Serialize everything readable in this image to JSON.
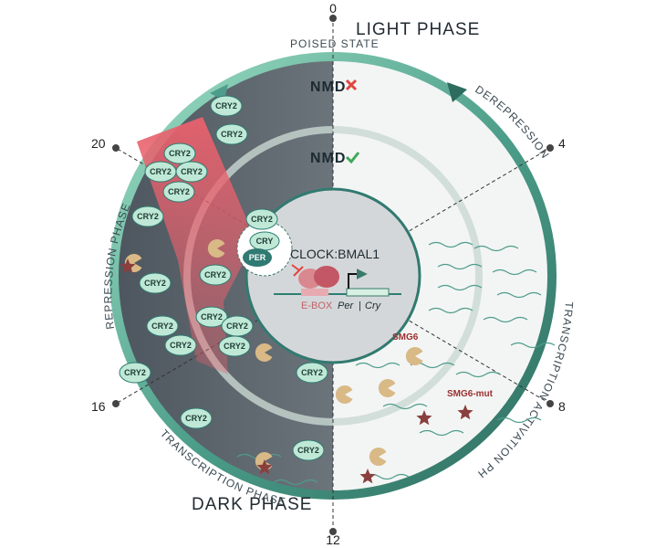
{
  "phases": {
    "light": "LIGHT PHASE",
    "dark": "DARK PHASE",
    "poised": "POISED STATE",
    "derepression": "DEREPRESSION",
    "activation": "TRANSCRIPTION ACTIVATION PHASE",
    "transcription": "TRANSCRIPTION PHASE",
    "repression": "REPRESSION PHASE"
  },
  "hours": {
    "h0": "0",
    "h4": "4",
    "h8": "8",
    "h12": "12",
    "h16": "16",
    "h20": "20"
  },
  "nmd": {
    "outer": "NMD",
    "inner": "NMD"
  },
  "complex": {
    "cry": "CRY",
    "per": "PER",
    "clock_bmal": "CLOCK:BMAL1",
    "ebox": "E-BOX",
    "per_gene": "Per",
    "separator": "|",
    "cry_gene": "Cry"
  },
  "proteins": {
    "cry2": "CRY2",
    "smg6": "SMG6",
    "smg6_mut": "SMG6-mut"
  },
  "colors": {
    "dark_half": "#555e66",
    "light_half": "#f3f5f4",
    "ring_teal": "#4e9c8c",
    "ring_light": "#b9e3cf",
    "cry_fill": "#bfe9d6",
    "per_fill": "#2f7a72",
    "repress_red": "#e05a66",
    "smg6": "#d9b986",
    "smg6_mut": "#8a3f3f"
  }
}
